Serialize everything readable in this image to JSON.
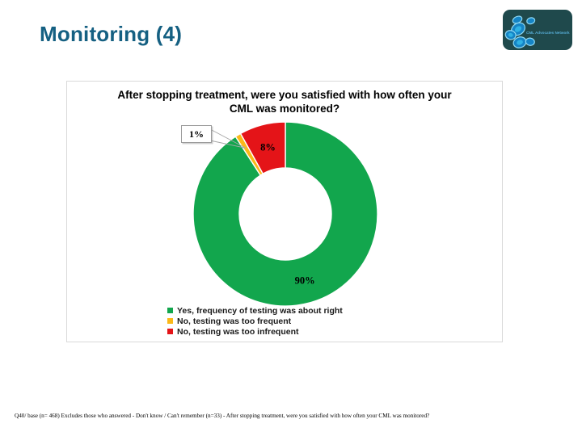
{
  "slide": {
    "title": "Monitoring (4)",
    "title_color": "#156082",
    "footer": "Q40/ base (n= 468) Excludes those who answered - Don't know / Can't remember (n=33) - After stopping treatment, were you satisfied with how often your CML was monitored?"
  },
  "logo": {
    "text": "CML Advocates Network",
    "bg_color": "#1F494C",
    "text_color": "#55ABD4",
    "cell_fill": "#1584C5",
    "cell_highlight": "#2FB2E4",
    "cell_ring": "#8FD9F4"
  },
  "chart_data": {
    "type": "pie",
    "subtype": "donut",
    "title": "After stopping treatment, were you satisfied with how often your CML was monitored?",
    "title_lines": [
      "After stopping treatment, were you satisfied with how often your",
      "CML was monitored?"
    ],
    "direction": "clockwise",
    "start_angle_deg": 0,
    "legend_position": "bottom-left",
    "slices": [
      {
        "label": "Yes, frequency of testing was about right",
        "value": 90,
        "display": "90%",
        "color": "#12A64D"
      },
      {
        "label": "No, testing was too frequent",
        "value": 1,
        "display": "1%",
        "color": "#FBB818"
      },
      {
        "label": "No, testing was too infrequent",
        "value": 8,
        "display": "8%",
        "color": "#E41418"
      }
    ],
    "callout": {
      "slice_index": 1,
      "text": "1%"
    }
  }
}
